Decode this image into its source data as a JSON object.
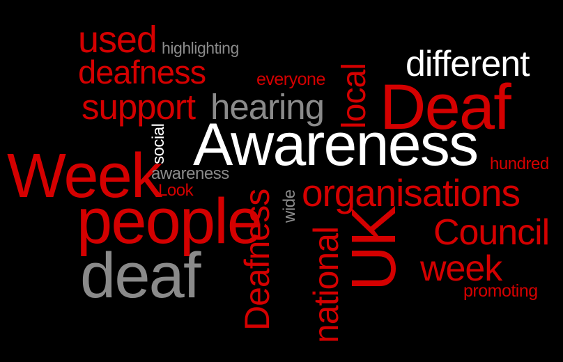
{
  "colors": {
    "background": "#000000",
    "red": "#d40000",
    "white": "#ffffff",
    "grey": "#8a8a8a"
  },
  "words": {
    "used": "used",
    "highlighting": "highlighting",
    "deafness_top": "deafness",
    "everyone": "everyone",
    "local": "local",
    "different": "different",
    "support": "support",
    "hearing": "hearing",
    "deaf_big": "Deaf",
    "social": "social",
    "awareness_big": "Awareness",
    "week_big": "Week",
    "awareness_small": "awareness",
    "hundred": "hundred",
    "look": "Look",
    "wide": "wide",
    "organisations": "organisations",
    "people": "people",
    "deafness_vertical": "Deafness",
    "national": "national",
    "uk": "UK",
    "council": "Council",
    "deaf_grey": "deaf",
    "week_small": "week",
    "promoting": "promoting"
  }
}
